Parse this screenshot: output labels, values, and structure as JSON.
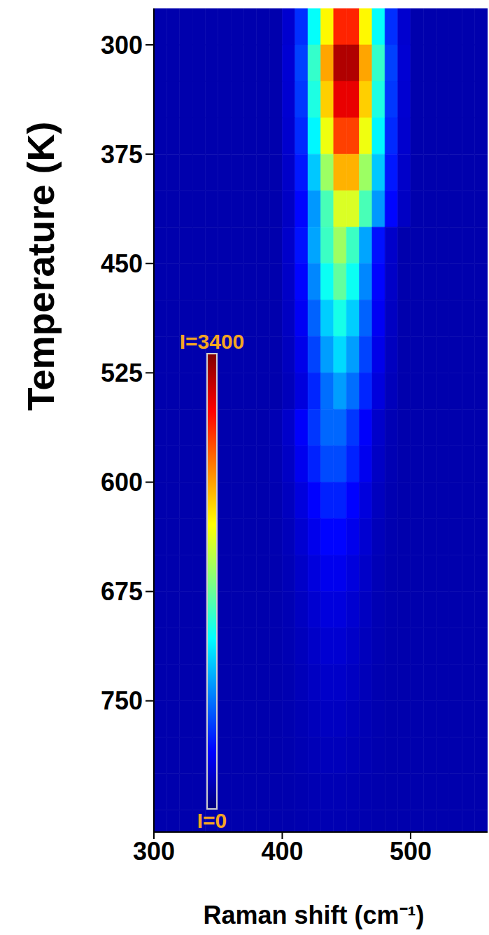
{
  "chart_data": {
    "type": "heatmap",
    "xlabel": "Raman shift (cm⁻¹)",
    "ylabel": "Temperature (K)",
    "xlim": [
      300,
      560
    ],
    "xticks": [
      300,
      400,
      500
    ],
    "ylim": [
      275,
      840
    ],
    "yticks": [
      300,
      375,
      450,
      525,
      600,
      675,
      750
    ],
    "x_bins": [
      300,
      310,
      320,
      330,
      340,
      350,
      360,
      370,
      380,
      390,
      400,
      410,
      420,
      430,
      440,
      450,
      460,
      470,
      480,
      490,
      500,
      510,
      520,
      530,
      540,
      550,
      560
    ],
    "y_bins": [
      275,
      300,
      325,
      350,
      375,
      400,
      425,
      450,
      475,
      500,
      525,
      550,
      575,
      600,
      625,
      650,
      675,
      700,
      725,
      750,
      775,
      800,
      825,
      850
    ],
    "cells": [
      [
        150,
        150,
        150,
        150,
        150,
        150,
        150,
        150,
        150,
        150,
        264,
        578,
        1290,
        2145,
        2858,
        2858,
        2145,
        1290,
        578,
        264,
        150,
        150,
        150,
        150,
        150,
        150
      ],
      [
        150,
        150,
        150,
        150,
        150,
        150,
        150,
        150,
        150,
        150,
        280,
        638,
        1450,
        2425,
        3238,
        3238,
        2425,
        1450,
        638,
        280,
        150,
        150,
        150,
        150,
        150,
        150
      ],
      [
        150,
        150,
        150,
        150,
        150,
        150,
        150,
        150,
        150,
        150,
        272,
        608,
        1370,
        2285,
        3048,
        3048,
        2285,
        1370,
        608,
        272,
        150,
        150,
        150,
        150,
        150,
        150
      ],
      [
        150,
        150,
        150,
        150,
        150,
        150,
        150,
        150,
        150,
        150,
        260,
        563,
        1250,
        2075,
        2763,
        2763,
        2075,
        1250,
        563,
        260,
        150,
        150,
        150,
        150,
        150,
        150
      ],
      [
        150,
        150,
        150,
        150,
        150,
        150,
        150,
        150,
        150,
        150,
        244,
        503,
        1090,
        1795,
        2383,
        2383,
        1795,
        1090,
        503,
        244,
        150,
        150,
        150,
        150,
        150,
        150
      ],
      [
        150,
        150,
        150,
        150,
        150,
        150,
        150,
        150,
        150,
        150,
        228,
        443,
        930,
        1515,
        2003,
        2003,
        1515,
        930,
        443,
        228,
        150,
        150,
        150,
        150,
        150,
        150
      ],
      [
        150,
        150,
        150,
        150,
        150,
        150,
        150,
        150,
        150,
        150,
        249,
        480,
        975,
        1470,
        1800,
        1470,
        975,
        480,
        249,
        150,
        150,
        150,
        150,
        150,
        150,
        150
      ],
      [
        150,
        150,
        150,
        150,
        150,
        150,
        150,
        150,
        150,
        150,
        237,
        440,
        875,
        1310,
        1600,
        1310,
        875,
        440,
        237,
        150,
        150,
        150,
        150,
        150,
        150,
        150
      ],
      [
        150,
        150,
        150,
        150,
        150,
        150,
        150,
        150,
        150,
        150,
        222,
        390,
        750,
        1110,
        1350,
        1110,
        750,
        390,
        222,
        150,
        150,
        150,
        150,
        150,
        150,
        150
      ],
      [
        150,
        150,
        150,
        150,
        150,
        150,
        150,
        150,
        150,
        150,
        210,
        350,
        650,
        950,
        1150,
        950,
        650,
        350,
        210,
        150,
        150,
        150,
        150,
        150,
        150,
        150
      ],
      [
        150,
        150,
        150,
        150,
        150,
        150,
        150,
        150,
        150,
        150,
        198,
        310,
        550,
        790,
        950,
        790,
        550,
        310,
        198,
        150,
        150,
        150,
        150,
        150,
        150,
        150
      ],
      [
        150,
        150,
        150,
        150,
        150,
        150,
        150,
        150,
        150,
        176,
        248,
        410,
        605,
        768,
        768,
        605,
        410,
        248,
        176,
        150,
        150,
        150,
        150,
        150,
        150,
        150
      ],
      [
        150,
        150,
        150,
        150,
        150,
        150,
        150,
        150,
        150,
        172,
        233,
        370,
        535,
        673,
        673,
        535,
        370,
        233,
        172,
        150,
        150,
        150,
        150,
        150,
        150,
        150
      ],
      [
        150,
        150,
        150,
        150,
        150,
        150,
        150,
        150,
        150,
        166,
        210,
        310,
        430,
        530,
        530,
        430,
        310,
        210,
        166,
        150,
        150,
        150,
        150,
        150,
        150,
        150
      ],
      [
        150,
        150,
        150,
        150,
        150,
        150,
        150,
        150,
        150,
        162,
        195,
        270,
        360,
        435,
        435,
        360,
        270,
        195,
        162,
        150,
        150,
        150,
        150,
        150,
        150,
        150
      ],
      [
        150,
        150,
        150,
        150,
        150,
        150,
        150,
        150,
        150,
        159,
        185,
        242,
        311,
        369,
        369,
        311,
        242,
        185,
        159,
        150,
        150,
        150,
        150,
        150,
        150,
        150
      ],
      [
        150,
        150,
        150,
        150,
        150,
        150,
        150,
        150,
        150,
        157,
        176,
        218,
        269,
        312,
        312,
        269,
        218,
        176,
        157,
        150,
        150,
        150,
        150,
        150,
        150,
        150
      ],
      [
        150,
        150,
        150,
        150,
        150,
        150,
        150,
        150,
        150,
        155,
        170,
        202,
        241,
        274,
        274,
        241,
        202,
        170,
        155,
        150,
        150,
        150,
        150,
        150,
        150,
        150
      ],
      [
        150,
        150,
        150,
        150,
        150,
        150,
        150,
        150,
        150,
        154,
        165,
        190,
        220,
        245,
        245,
        220,
        190,
        165,
        154,
        150,
        150,
        150,
        150,
        150,
        150,
        150
      ],
      [
        150,
        150,
        150,
        150,
        150,
        150,
        150,
        150,
        150,
        153,
        161,
        178,
        199,
        217,
        217,
        199,
        178,
        161,
        153,
        150,
        150,
        150,
        150,
        150,
        150,
        150
      ],
      [
        150,
        150,
        150,
        150,
        150,
        150,
        150,
        150,
        150,
        152,
        158,
        170,
        185,
        198,
        198,
        185,
        170,
        158,
        152,
        150,
        150,
        150,
        150,
        150,
        150,
        150
      ],
      [
        150,
        150,
        150,
        150,
        150,
        150,
        150,
        150,
        150,
        151,
        155,
        162,
        171,
        179,
        179,
        171,
        162,
        155,
        151,
        150,
        150,
        150,
        150,
        150,
        150,
        150
      ],
      [
        150,
        150,
        150,
        150,
        150,
        150,
        150,
        150,
        150,
        151,
        153,
        158,
        164,
        169,
        169,
        164,
        158,
        153,
        151,
        150,
        150,
        150,
        150,
        150,
        150,
        150
      ]
    ],
    "colorbar": {
      "range": [
        0,
        3400
      ],
      "labels": [
        {
          "value": 3400,
          "label": "I=3400"
        },
        {
          "value": 0,
          "label": "I=0"
        }
      ]
    }
  }
}
